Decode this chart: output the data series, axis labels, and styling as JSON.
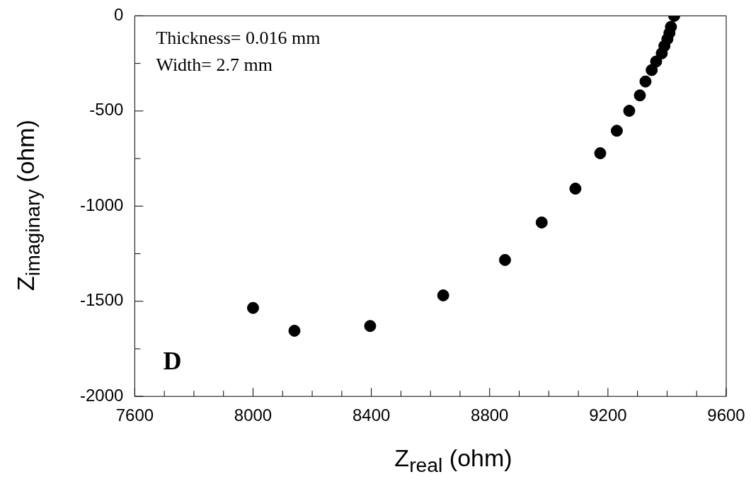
{
  "chart_data": {
    "type": "scatter",
    "xlabel": "Z$_{real}$ (ohm)",
    "ylabel": "Z$_{imaginary}$ (ohm)",
    "annotations": [
      "Thickness= 0.016 mm",
      "Width= 2.7 mm",
      "D"
    ],
    "x": [
      8000,
      8140,
      8396,
      8643,
      8852,
      8976,
      9090,
      9174,
      9230,
      9272,
      9308,
      9327,
      9348,
      9363,
      9382,
      9391,
      9401,
      9408,
      9413,
      9418,
      9422,
      9424
    ],
    "values": [
      -1535,
      -1655,
      -1630,
      -1469,
      -1283,
      -1086,
      -908,
      -722,
      -604,
      -499,
      -418,
      -345,
      -285,
      -240,
      -197,
      -158,
      -122,
      -90,
      -58,
      null,
      null,
      0
    ],
    "color": "#000000",
    "marker": "circle",
    "grid": false,
    "legend": false,
    "xlim": [
      7600,
      9600
    ],
    "xticks": [
      {
        "value": 7600,
        "label": "7600"
      },
      {
        "value": 7700,
        "label": null
      },
      {
        "value": 7800,
        "label": null
      },
      {
        "value": 7900,
        "label": null
      },
      {
        "value": 8000,
        "label": "8000"
      },
      {
        "value": 8100,
        "label": null
      },
      {
        "value": 8200,
        "label": null
      },
      {
        "value": 8300,
        "label": null
      },
      {
        "value": 8400,
        "label": "8400"
      },
      {
        "value": 8500,
        "label": null
      },
      {
        "value": 8600,
        "label": null
      },
      {
        "value": 8700,
        "label": null
      },
      {
        "value": 8800,
        "label": "8800"
      },
      {
        "value": 8900,
        "label": null
      },
      {
        "value": 9000,
        "label": null
      },
      {
        "value": 9100,
        "label": null
      },
      {
        "value": 9200,
        "label": "9200"
      },
      {
        "value": 9300,
        "label": null
      },
      {
        "value": 9400,
        "label": null
      },
      {
        "value": 9500,
        "label": null
      },
      {
        "value": 9600,
        "label": "9600"
      }
    ],
    "ylim": [
      -2000,
      0
    ],
    "yticks": [
      {
        "value": -2000,
        "label": "-2000"
      },
      {
        "value": -1750,
        "label": null
      },
      {
        "value": -1500,
        "label": "-1500"
      },
      {
        "value": -1250,
        "label": null
      },
      {
        "value": -1000,
        "label": "-1000"
      },
      {
        "value": -750,
        "label": null
      },
      {
        "value": -500,
        "label": "-500"
      },
      {
        "value": -250,
        "label": null
      },
      {
        "value": 0,
        "label": "0"
      }
    ]
  }
}
